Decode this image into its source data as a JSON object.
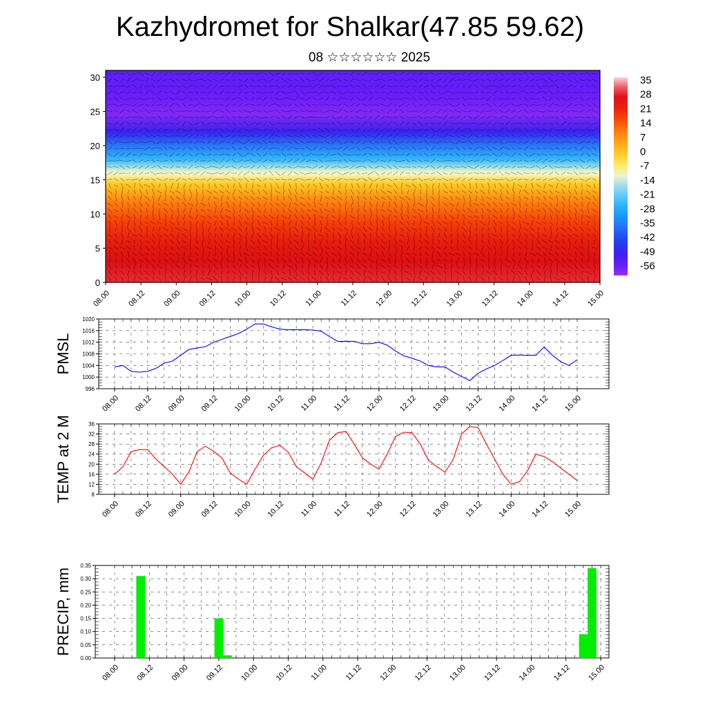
{
  "title": "Kazhydromet for Shalkar(47.85 59.62)",
  "subtitle": "08 ☆☆☆☆☆☆ 2025",
  "colors": {
    "pmsl": "#0000ff",
    "temp": "#ff0000",
    "precip": "#00ee00"
  },
  "chart_data": [
    {
      "type": "heatmap",
      "title": "",
      "xlabel": "",
      "ylabel": "",
      "x_tick_labels": [
        "08.00",
        "08.12",
        "09.00",
        "09.12",
        "10.00",
        "10.12",
        "11.00",
        "11.12",
        "12.00",
        "12.12",
        "13.00",
        "13.12",
        "14.00",
        "14.12",
        "15.00"
      ],
      "y_ticks": [
        0,
        5,
        10,
        15,
        20,
        25,
        30
      ],
      "ylim": [
        0,
        31
      ],
      "levels_labels": [
        35,
        28,
        21,
        14,
        7,
        0,
        -7,
        -14,
        -21,
        -28,
        -35,
        -42,
        -49,
        -56
      ],
      "colorbar_range": [
        -60,
        38
      ],
      "profile": [
        {
          "height": 0,
          "value": 30
        },
        {
          "height": 3,
          "value": 28
        },
        {
          "height": 6,
          "value": 24
        },
        {
          "height": 9,
          "value": 18
        },
        {
          "height": 12,
          "value": 10
        },
        {
          "height": 14.5,
          "value": 0
        },
        {
          "height": 16,
          "value": -10
        },
        {
          "height": 18,
          "value": -25
        },
        {
          "height": 20,
          "value": -35
        },
        {
          "height": 22,
          "value": -48
        },
        {
          "height": 24.5,
          "value": -58
        },
        {
          "height": 27,
          "value": -56
        },
        {
          "height": 29,
          "value": -54
        },
        {
          "height": 31,
          "value": -54
        }
      ],
      "overlay": "wind barbs"
    },
    {
      "type": "line",
      "ylabel": "PMSL",
      "ylim": [
        996,
        1020
      ],
      "y_ticks": [
        996,
        1000,
        1004,
        1008,
        1012,
        1016,
        1020
      ],
      "x_tick_labels": [
        "08.00",
        "08.12",
        "09.00",
        "09.12",
        "10.00",
        "10.12",
        "11.00",
        "11.12",
        "12.00",
        "12.12",
        "13.00",
        "13.12",
        "14.00",
        "14.12",
        "15.00"
      ],
      "series": [
        {
          "values": [
            1003.5,
            1004,
            1002,
            1001.7,
            1002,
            1003,
            1004.8,
            1005.5,
            1007.5,
            1009.5,
            1010,
            1010.5,
            1012,
            1013,
            1014,
            1015,
            1016.5,
            1018.3,
            1018.3,
            1017.3,
            1016.5,
            1016.3,
            1016.3,
            1016.3,
            1016.2,
            1015.8,
            1014,
            1012.3,
            1012.3,
            1012.3,
            1011.5,
            1011.5,
            1012,
            1011,
            1009,
            1007.3,
            1006.5,
            1005.5,
            1004,
            1003.5,
            1003.5,
            1001.7,
            1000.2,
            998.8,
            1001.3,
            1002.8,
            1004,
            1005.7,
            1007.5,
            1007.6,
            1007.5,
            1007.5,
            1010.4,
            1007.5,
            1005.3,
            1004,
            1006
          ]
        }
      ]
    },
    {
      "type": "line",
      "ylabel": "TEMP at 2 M",
      "ylim": [
        8,
        36
      ],
      "y_ticks": [
        8,
        12,
        16,
        20,
        24,
        28,
        32,
        36
      ],
      "x_tick_labels": [
        "08.00",
        "08.12",
        "09.00",
        "09.12",
        "10.00",
        "10.12",
        "11.00",
        "11.12",
        "12.00",
        "12.12",
        "13.00",
        "13.12",
        "14.00",
        "14.12",
        "15.00"
      ],
      "series": [
        {
          "values": [
            16,
            19,
            25,
            25.8,
            25.8,
            22,
            19,
            16,
            12,
            17,
            25,
            27.2,
            25,
            22.5,
            16.5,
            14,
            12,
            18,
            23.5,
            26.5,
            27.5,
            24.8,
            19,
            16.5,
            14,
            20.5,
            29.5,
            32.5,
            33,
            28,
            22.5,
            20,
            18,
            24,
            31,
            32.7,
            32.5,
            28,
            21.5,
            19,
            16.8,
            22,
            32,
            35,
            34.5,
            28,
            22,
            16,
            12,
            13,
            17.5,
            24,
            23,
            21,
            18.5,
            16,
            13.5
          ]
        }
      ]
    },
    {
      "type": "bar",
      "ylabel": "PRECIP, mm",
      "ylim": [
        0,
        0.35
      ],
      "y_ticks": [
        "0.00",
        "0.05",
        "0.10",
        "0.15",
        "0.20",
        "0.25",
        "0.30",
        "0.35"
      ],
      "x_tick_labels": [
        "08.00",
        "08.12",
        "09.00",
        "09.12",
        "10.00",
        "10.12",
        "11.00",
        "11.12",
        "12.00",
        "12.12",
        "13.00",
        "13.12",
        "14.00",
        "14.12",
        "15.00"
      ],
      "bars": [
        {
          "period": 3,
          "value": 0.31
        },
        {
          "period": 12,
          "value": 0.15
        },
        {
          "period": 13,
          "value": 0.01
        },
        {
          "period": 54,
          "value": 0.09
        },
        {
          "period": 55,
          "value": 0.34
        }
      ]
    }
  ]
}
